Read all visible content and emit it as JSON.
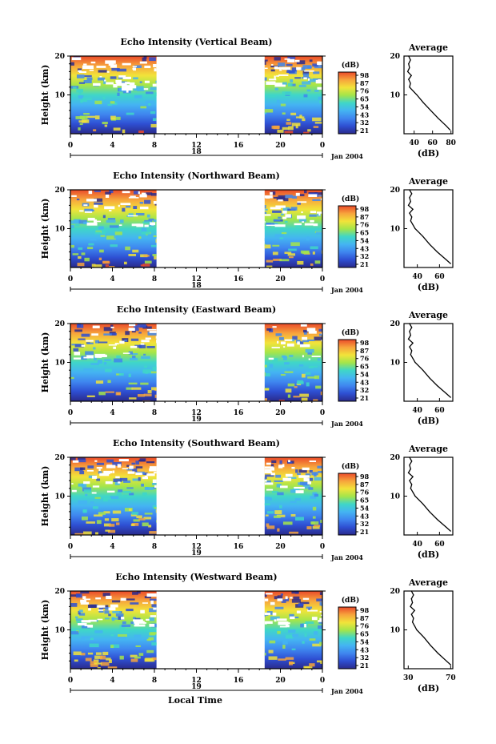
{
  "figure": {
    "x_axis_label": "Local Time",
    "date_label": "Jan 2004",
    "colorbar_unit": "(dB)",
    "colorbar_ticks": [],
    "colors": {
      "scale": [
        "#2a2a8c",
        "#2e4fd2",
        "#3f86ef",
        "#44b4f2",
        "#3fd6c8",
        "#a4e54a",
        "#f2e33a",
        "#f7a43c",
        "#ea4a2a"
      ]
    }
  },
  "chart_data": [
    {
      "type": "heatmap",
      "title": "Echo Intensity (Vertical Beam)",
      "ylabel": "Height (km)",
      "ylim": [
        0,
        20
      ],
      "y_ticks": [
        "10",
        "20"
      ],
      "x_ticks": [
        "0",
        "4",
        "8",
        "12",
        "16",
        "20",
        "0"
      ],
      "day_label": "18",
      "data_intervals_hours": [
        [
          0,
          8.2
        ],
        [
          18.5,
          24
        ]
      ],
      "colorbar_ticks": [
        "98",
        "87",
        "76",
        "65",
        "54",
        "43",
        "32",
        "21"
      ],
      "profile": {
        "title": "Average",
        "xlabel": "(dB)",
        "x_ticks": [
          "40",
          "60",
          "80"
        ],
        "y_ticks": [
          "10",
          "20"
        ],
        "height_km": [
          1,
          2,
          4,
          6,
          8,
          10,
          11,
          12,
          13,
          14,
          15,
          16,
          17,
          18,
          19,
          20
        ],
        "db": [
          79,
          75,
          66,
          58,
          50,
          43,
          39,
          35,
          36,
          34,
          37,
          33,
          35,
          34,
          36,
          34
        ]
      }
    },
    {
      "type": "heatmap",
      "title": "Echo Intensity (Northward Beam)",
      "ylabel": "Height (km)",
      "ylim": [
        0,
        20
      ],
      "y_ticks": [
        "10",
        "20"
      ],
      "x_ticks": [
        "0",
        "4",
        "8",
        "12",
        "16",
        "20",
        "0"
      ],
      "day_label": "18",
      "data_intervals_hours": [
        [
          0,
          8.2
        ],
        [
          18.5,
          24
        ]
      ],
      "colorbar_ticks": [
        "98",
        "87",
        "76",
        "65",
        "54",
        "43",
        "32",
        "21"
      ],
      "profile": {
        "title": "Average",
        "xlabel": "(dB)",
        "x_ticks": [
          "40",
          "60"
        ],
        "y_ticks": [
          "10",
          "20"
        ],
        "height_km": [
          1,
          2,
          4,
          6,
          8,
          10,
          11,
          12,
          13,
          14,
          15,
          16,
          17,
          18,
          19,
          20
        ],
        "db": [
          70,
          66,
          58,
          51,
          45,
          38,
          36,
          34,
          35,
          33,
          36,
          32,
          34,
          33,
          35,
          33
        ]
      }
    },
    {
      "type": "heatmap",
      "title": "Echo Intensity (Eastward Beam)",
      "ylabel": "Height (km)",
      "ylim": [
        0,
        20
      ],
      "y_ticks": [
        "10",
        "20"
      ],
      "x_ticks": [
        "0",
        "4",
        "8",
        "12",
        "16",
        "20",
        "0"
      ],
      "day_label": "19",
      "data_intervals_hours": [
        [
          0,
          8.2
        ],
        [
          18.5,
          24
        ]
      ],
      "colorbar_ticks": [
        "98",
        "87",
        "76",
        "65",
        "54",
        "43",
        "32",
        "21"
      ],
      "profile": {
        "title": "Average",
        "xlabel": "(dB)",
        "x_ticks": [
          "40",
          "60"
        ],
        "y_ticks": [
          "10",
          "20"
        ],
        "height_km": [
          1,
          2,
          4,
          6,
          8,
          10,
          11,
          12,
          13,
          14,
          15,
          16,
          17,
          18,
          19,
          20
        ],
        "db": [
          70,
          66,
          58,
          51,
          45,
          38,
          36,
          34,
          35,
          33,
          36,
          32,
          34,
          33,
          35,
          33
        ]
      }
    },
    {
      "type": "heatmap",
      "title": "Echo Intensity (Southward Beam)",
      "ylabel": "Height (km)",
      "ylim": [
        0,
        20
      ],
      "y_ticks": [
        "10",
        "20"
      ],
      "x_ticks": [
        "0",
        "4",
        "8",
        "12",
        "16",
        "20",
        "0"
      ],
      "day_label": "19",
      "data_intervals_hours": [
        [
          0,
          8.2
        ],
        [
          18.5,
          24
        ]
      ],
      "colorbar_ticks": [
        "98",
        "87",
        "76",
        "65",
        "54",
        "43",
        "32",
        "21"
      ],
      "profile": {
        "title": "Average",
        "xlabel": "(dB)",
        "x_ticks": [
          "40",
          "60"
        ],
        "y_ticks": [
          "10",
          "20"
        ],
        "height_km": [
          1,
          2,
          4,
          6,
          8,
          10,
          11,
          12,
          13,
          14,
          15,
          16,
          17,
          18,
          19,
          20
        ],
        "db": [
          70,
          66,
          58,
          51,
          45,
          38,
          36,
          34,
          35,
          33,
          36,
          32,
          34,
          33,
          35,
          33
        ]
      }
    },
    {
      "type": "heatmap",
      "title": "Echo Intensity (Westward Beam)",
      "ylabel": "Height (km)",
      "ylim": [
        0,
        20
      ],
      "y_ticks": [
        "10",
        "20"
      ],
      "x_ticks": [
        "0",
        "4",
        "8",
        "12",
        "16",
        "20",
        "0"
      ],
      "day_label": "19",
      "data_intervals_hours": [
        [
          0,
          8.2
        ],
        [
          18.5,
          24
        ]
      ],
      "colorbar_ticks": [
        "98",
        "87",
        "76",
        "65",
        "54",
        "43",
        "32",
        "21"
      ],
      "profile": {
        "title": "Average",
        "xlabel": "(dB)",
        "x_ticks": [
          "30",
          "70"
        ],
        "y_ticks": [
          "10",
          "20"
        ],
        "height_km": [
          1,
          2,
          4,
          6,
          8,
          10,
          11,
          12,
          13,
          14,
          15,
          16,
          17,
          18,
          19,
          20
        ],
        "db": [
          70,
          66,
          58,
          51,
          45,
          38,
          36,
          34,
          35,
          33,
          36,
          32,
          34,
          33,
          35,
          33
        ]
      }
    }
  ]
}
